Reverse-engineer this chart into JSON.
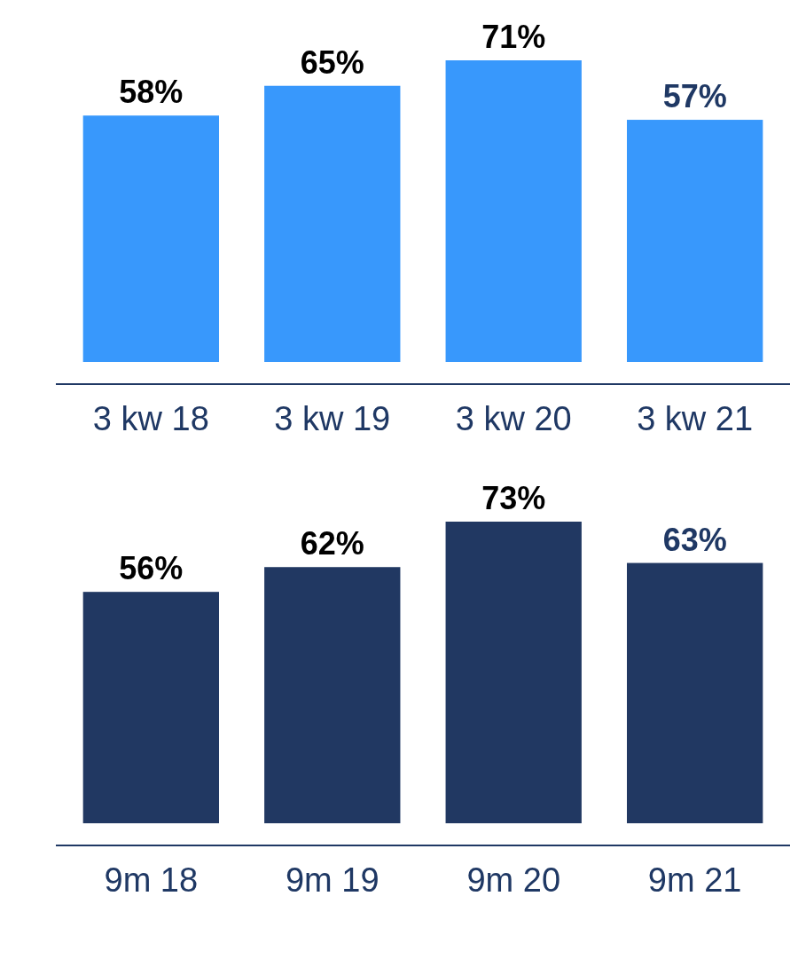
{
  "chart_data": [
    {
      "type": "bar",
      "categories": [
        "3 kw 18",
        "3 kw 19",
        "3 kw 20",
        "3 kw 21"
      ],
      "values": [
        58,
        65,
        71,
        57
      ],
      "color": "#3898fc",
      "value_labels": [
        "58%",
        "65%",
        "71%",
        "57%"
      ]
    },
    {
      "type": "bar",
      "categories": [
        "9m 18",
        "9m 19",
        "9m 20",
        "9m 21"
      ],
      "values": [
        56,
        62,
        73,
        63
      ],
      "color": "#213862",
      "value_labels": [
        "56%",
        "62%",
        "73%",
        "63%"
      ]
    }
  ]
}
